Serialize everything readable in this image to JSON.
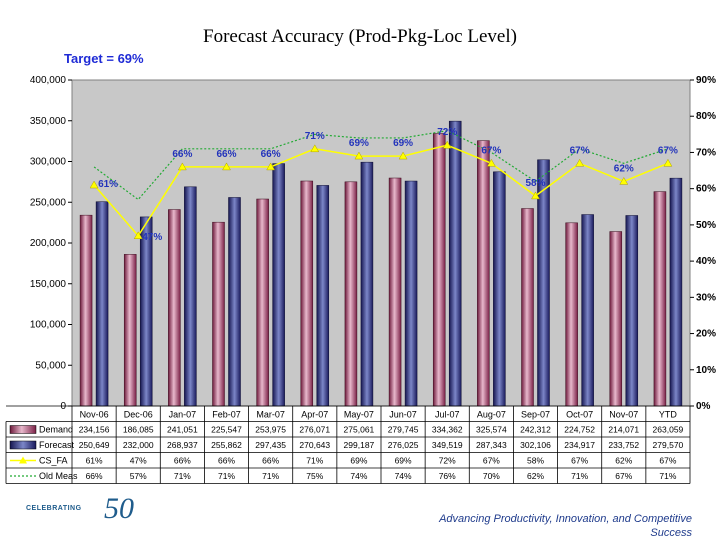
{
  "chart_data": {
    "type": "bar",
    "title": "Forecast Accuracy (Prod-Pkg-Loc Level)",
    "annotation": "Target = 69%",
    "categories": [
      "Nov-06",
      "Dec-06",
      "Jan-07",
      "Feb-07",
      "Mar-07",
      "Apr-07",
      "May-07",
      "Jun-07",
      "Jul-07",
      "Aug-07",
      "Sep-07",
      "Oct-07",
      "Nov-07",
      "YTD"
    ],
    "left_axis": {
      "min": 0,
      "max": 400000,
      "ticks": [
        "0",
        "50,000",
        "100,000",
        "150,000",
        "200,000",
        "250,000",
        "300,000",
        "350,000",
        "400,000"
      ]
    },
    "right_axis": {
      "min": 0,
      "max": 90,
      "ticks": [
        "0%",
        "10%",
        "20%",
        "30%",
        "40%",
        "50%",
        "60%",
        "70%",
        "80%",
        "90%"
      ]
    },
    "series": [
      {
        "name": "Demand",
        "type": "bar",
        "axis": "left",
        "color": "#b0406a",
        "values": [
          234156,
          186085,
          241051,
          225547,
          253975,
          276071,
          275061,
          279745,
          334362,
          325574,
          242312,
          224752,
          214071,
          263059
        ],
        "labels": [
          "234,156",
          "186,085",
          "241,051",
          "225,547",
          "253,975",
          "276,071",
          "275,061",
          "279,745",
          "334,362",
          "325,574",
          "242,312",
          "224,752",
          "214,071",
          "263,059"
        ]
      },
      {
        "name": "Forecast",
        "type": "bar",
        "axis": "left",
        "color": "#2a2a8c",
        "values": [
          250649,
          232000,
          268937,
          255862,
          297435,
          270643,
          299187,
          276025,
          349519,
          287343,
          302106,
          234917,
          233752,
          279570
        ],
        "labels": [
          "250,649",
          "232,000",
          "268,937",
          "255,862",
          "297,435",
          "270,643",
          "299,187",
          "276,025",
          "349,519",
          "287,343",
          "302,106",
          "234,917",
          "233,752",
          "279,570"
        ]
      },
      {
        "name": "CS_FA",
        "type": "line",
        "axis": "right",
        "color": "#ffff00",
        "values": [
          61,
          47,
          66,
          66,
          66,
          71,
          69,
          69,
          72,
          67,
          58,
          67,
          62,
          67
        ],
        "labels": [
          "61%",
          "47%",
          "66%",
          "66%",
          "66%",
          "71%",
          "69%",
          "69%",
          "72%",
          "67%",
          "58%",
          "67%",
          "62%",
          "67%"
        ]
      },
      {
        "name": "Old Meas",
        "type": "line",
        "axis": "right",
        "color": "#22aa33",
        "values": [
          66,
          57,
          71,
          71,
          71,
          75,
          74,
          74,
          76,
          70,
          62,
          71,
          67,
          71
        ],
        "labels": [
          "66%",
          "57%",
          "71%",
          "71%",
          "71%",
          "75%",
          "74%",
          "74%",
          "76%",
          "70%",
          "62%",
          "71%",
          "67%",
          "71%"
        ]
      }
    ],
    "point_labels_shown": [
      {
        "series": "CS_FA",
        "index": 0,
        "text": "61%"
      },
      {
        "series": "CS_FA",
        "index": 1,
        "text": "47%"
      },
      {
        "series": "CS_FA",
        "index": 2,
        "text": "66%"
      },
      {
        "series": "CS_FA",
        "index": 3,
        "text": "66%"
      },
      {
        "series": "CS_FA",
        "index": 4,
        "text": "66%"
      },
      {
        "series": "CS_FA",
        "index": 5,
        "text": "71%"
      },
      {
        "series": "CS_FA",
        "index": 6,
        "text": "69%"
      },
      {
        "series": "CS_FA",
        "index": 7,
        "text": "69%"
      },
      {
        "series": "CS_FA",
        "index": 8,
        "text": "72%"
      },
      {
        "series": "CS_FA",
        "index": 9,
        "text": "67%"
      },
      {
        "series": "CS_FA",
        "index": 10,
        "text": "58%"
      },
      {
        "series": "CS_FA",
        "index": 11,
        "text": "67%"
      },
      {
        "series": "CS_FA",
        "index": 12,
        "text": "62%"
      },
      {
        "series": "CS_FA",
        "index": 13,
        "text": "67%"
      }
    ],
    "grid": false,
    "legend": "data-table-below"
  },
  "footer": {
    "line1": "Advancing Productivity, Innovation, and Competitive",
    "line2": "Success"
  },
  "logo": {
    "text": "CELEBRATING",
    "number": "50"
  }
}
